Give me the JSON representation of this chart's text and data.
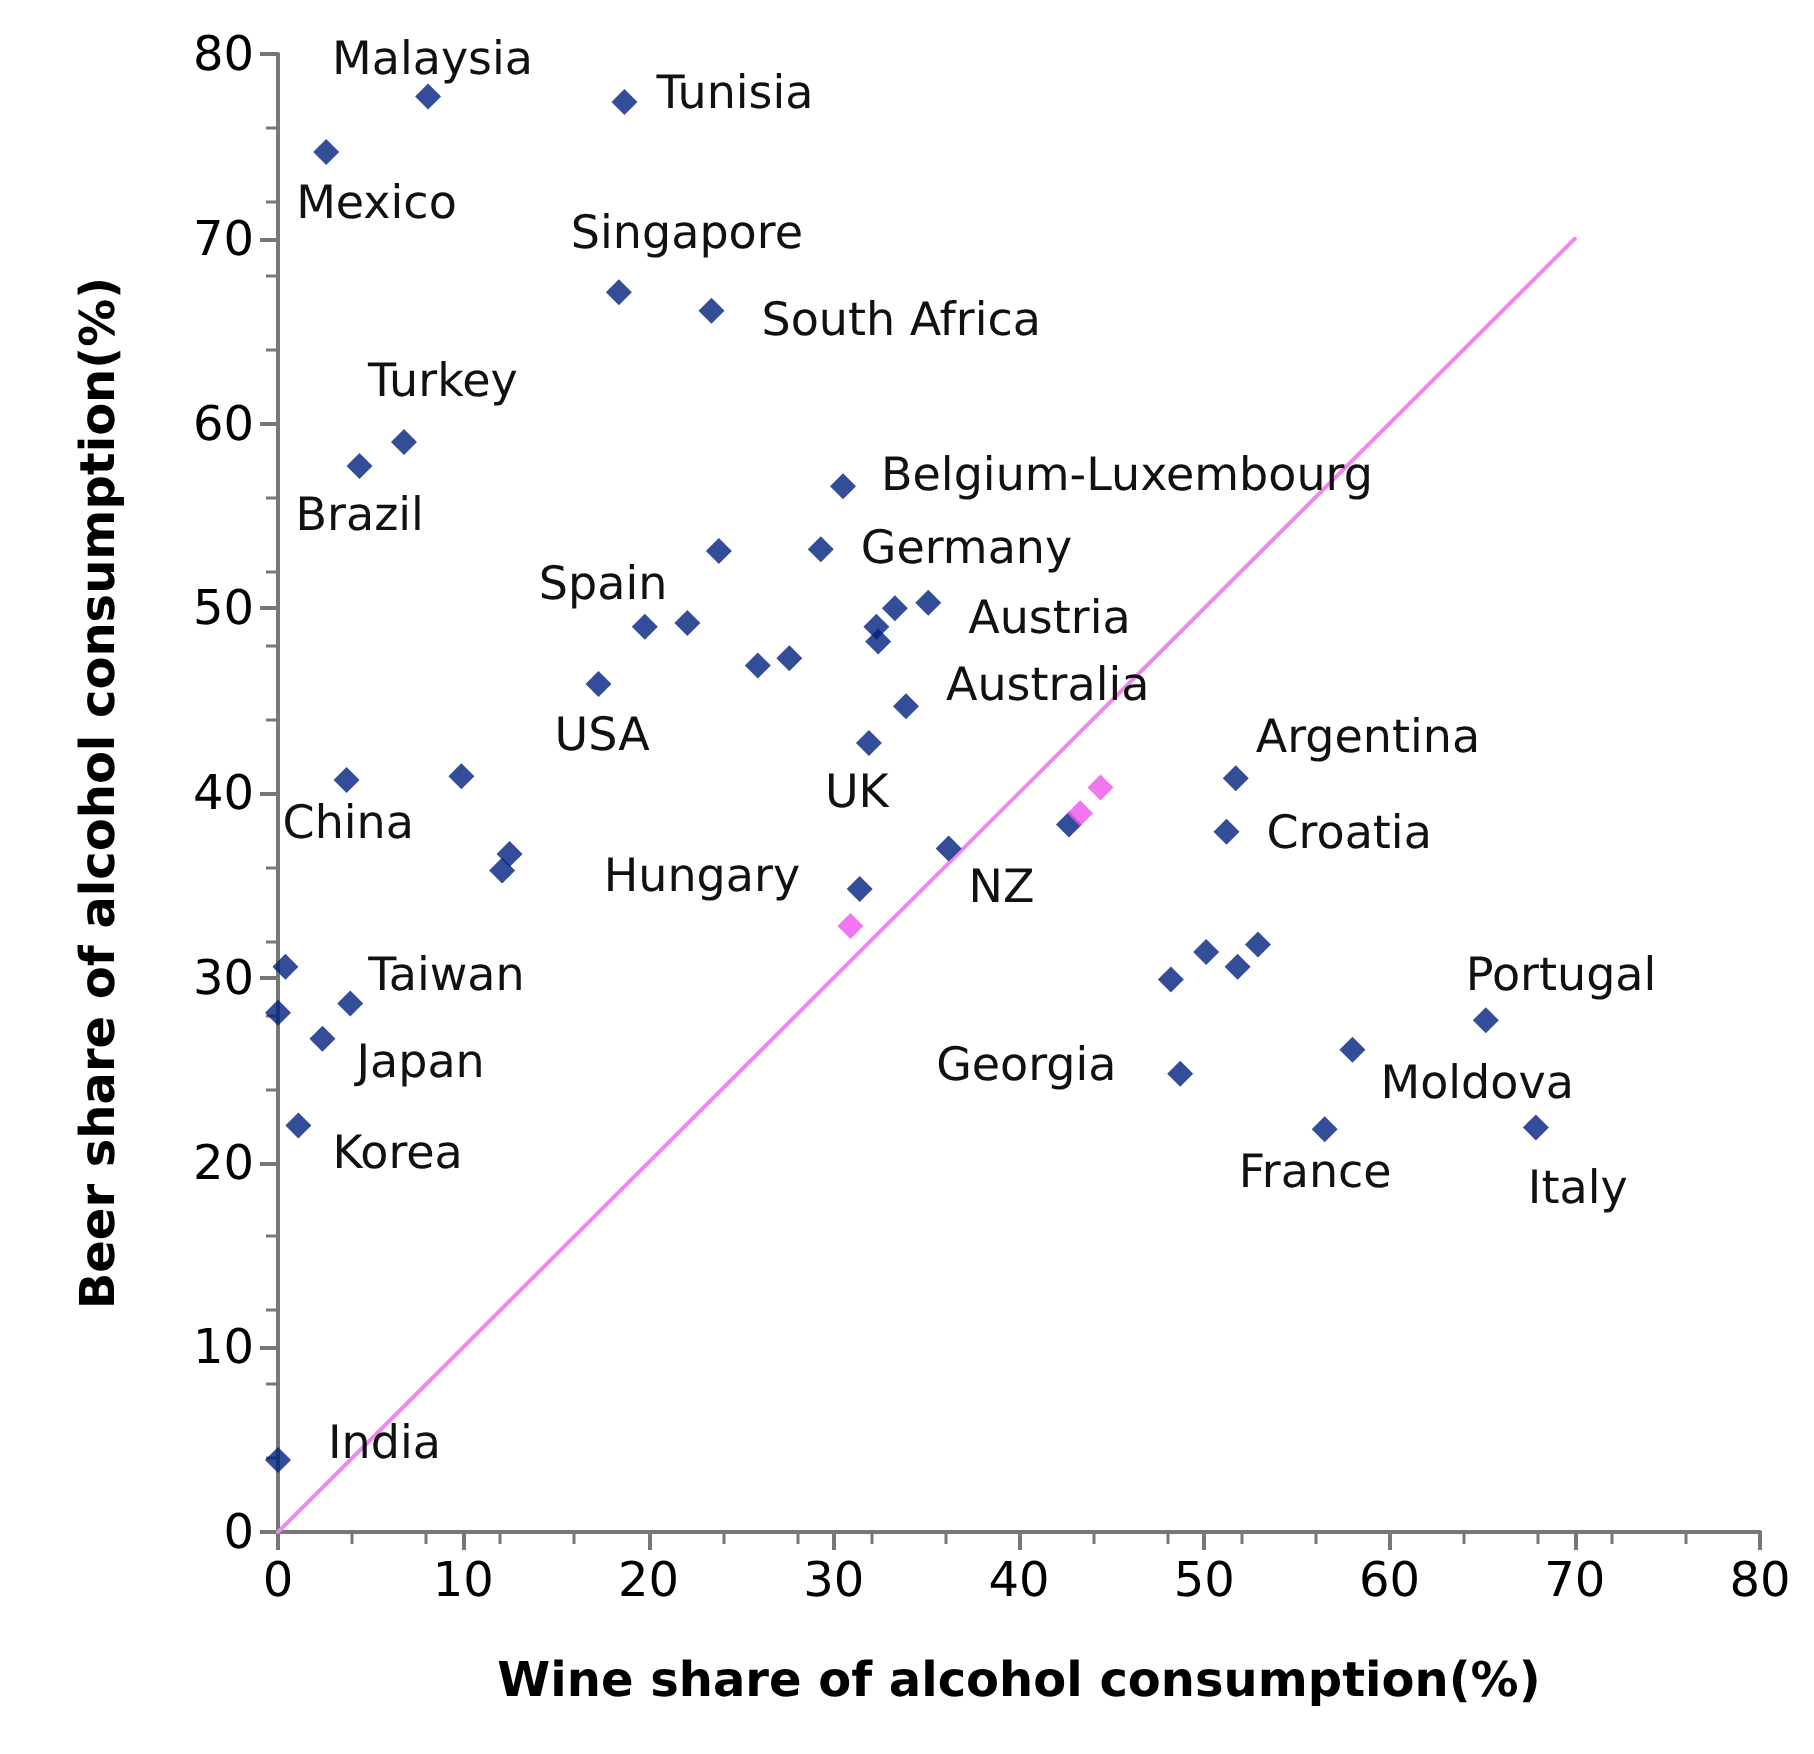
{
  "chart_data": {
    "type": "scatter",
    "xlabel": "Wine share of alcohol consumption(%)",
    "ylabel": "Beer share of alcohol consumption(%)",
    "xlim": [
      0,
      80
    ],
    "xticks": [
      0,
      10,
      20,
      30,
      40,
      50,
      60,
      70,
      80
    ],
    "ylim": [
      0,
      80
    ],
    "yticks": [
      0,
      10,
      20,
      30,
      40,
      50,
      60,
      70,
      80
    ],
    "marker": "diamond",
    "series": [
      {
        "color": "#00217e",
        "x": [
          8.1,
          18.7,
          2.6,
          18.4,
          23.4,
          6.8,
          4.4,
          30.5,
          23.8,
          29.3,
          35.1,
          33.3,
          32.3,
          32.4,
          19.8,
          22.1,
          25.9,
          27.6,
          17.3,
          33.9,
          31.9,
          3.7,
          9.9,
          12.5,
          12.1,
          31.4,
          36.2,
          42.7,
          51.7,
          51.2,
          48.2,
          50.1,
          51.8,
          52.9,
          48.7,
          65.2,
          58.0,
          56.5,
          67.9,
          0.4,
          0.0,
          3.9,
          2.4,
          1.1,
          0.0
        ],
        "values": [
          77.7,
          77.4,
          74.7,
          67.1,
          66.1,
          59.0,
          57.7,
          56.6,
          53.1,
          53.2,
          50.3,
          50.0,
          49.0,
          48.2,
          49.0,
          49.2,
          46.9,
          47.3,
          45.9,
          44.7,
          42.7,
          40.7,
          40.9,
          36.7,
          35.8,
          34.8,
          37.0,
          38.3,
          40.8,
          37.9,
          29.9,
          31.4,
          30.6,
          31.8,
          24.8,
          27.7,
          26.1,
          21.8,
          21.9,
          30.6,
          28.1,
          28.6,
          26.7,
          22.0,
          3.9
        ]
      },
      {
        "color": "#ee55ee",
        "x": [
          30.9,
          43.3,
          44.4
        ],
        "values": [
          32.8,
          38.9,
          40.3
        ]
      },
      {
        "type": "line",
        "color": "#ee88ee",
        "marker": "none",
        "x": [
          0,
          70
        ],
        "values": [
          0,
          70
        ]
      }
    ],
    "annotations": [
      {
        "text": "Malaysia",
        "x": 8.1,
        "y": 77.7
      },
      {
        "text": "Tunisia",
        "x": 18.7,
        "y": 77.4
      },
      {
        "text": "Mexico",
        "x": 2.6,
        "y": 74.7
      },
      {
        "text": "Singapore",
        "x": 18.4,
        "y": 67.1
      },
      {
        "text": "South Africa",
        "x": 23.4,
        "y": 66.1
      },
      {
        "text": "Turkey",
        "x": 6.8,
        "y": 59.0
      },
      {
        "text": "Brazil",
        "x": 4.4,
        "y": 57.7
      },
      {
        "text": "Belgium-Luxembourg",
        "x": 30.5,
        "y": 56.6
      },
      {
        "text": "Germany",
        "x": 29.3,
        "y": 53.2
      },
      {
        "text": "Austria",
        "x": 35.1,
        "y": 50.3
      },
      {
        "text": "Spain",
        "x": 19.8,
        "y": 49.0
      },
      {
        "text": "USA",
        "x": 17.3,
        "y": 45.9
      },
      {
        "text": "Australia",
        "x": 33.9,
        "y": 44.7
      },
      {
        "text": "UK",
        "x": 31.9,
        "y": 42.7
      },
      {
        "text": "China",
        "x": 3.7,
        "y": 40.7
      },
      {
        "text": "Hungary",
        "x": 31.4,
        "y": 34.8
      },
      {
        "text": "NZ",
        "x": 36.2,
        "y": 37.0
      },
      {
        "text": "Argentina",
        "x": 51.7,
        "y": 40.8
      },
      {
        "text": "Croatia",
        "x": 51.2,
        "y": 37.9
      },
      {
        "text": "Georgia",
        "x": 48.7,
        "y": 24.8
      },
      {
        "text": "Portugal",
        "x": 65.2,
        "y": 27.7
      },
      {
        "text": "Moldova",
        "x": 58.0,
        "y": 26.1
      },
      {
        "text": "France",
        "x": 56.5,
        "y": 21.8
      },
      {
        "text": "Italy",
        "x": 67.9,
        "y": 21.9
      },
      {
        "text": "Taiwan",
        "x": 3.9,
        "y": 28.6
      },
      {
        "text": "Japan",
        "x": 2.4,
        "y": 26.7
      },
      {
        "text": "Korea",
        "x": 1.1,
        "y": 22.0
      },
      {
        "text": "India",
        "x": 0.0,
        "y": 3.9
      }
    ]
  }
}
